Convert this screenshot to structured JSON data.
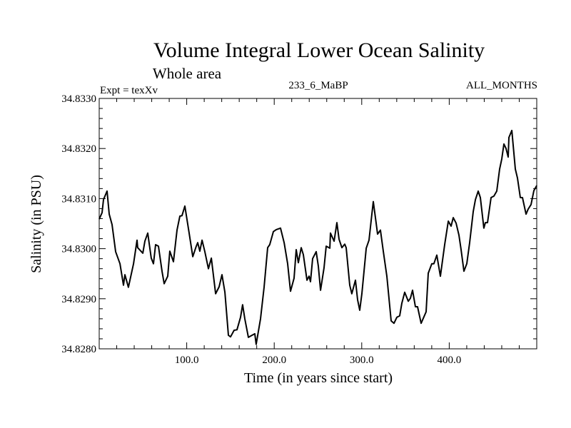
{
  "chart_data": {
    "type": "line",
    "title": "Volume Integral Lower Ocean Salinity",
    "subtitle": "Whole area",
    "header_left": "Expt = texXv",
    "header_center": "233_6_MaBP",
    "header_right": "ALL_MONTHS",
    "xlabel": "Time (in years since start)",
    "ylabel": "Salinity (in PSU)",
    "xlim": [
      0,
      500
    ],
    "ylim": [
      34.828,
      34.833
    ],
    "x_ticks": [
      100,
      200,
      300,
      400
    ],
    "x_tick_labels": [
      "100.0",
      "200.0",
      "300.0",
      "400.0"
    ],
    "x_minor_step": 20,
    "y_ticks": [
      34.828,
      34.829,
      34.83,
      34.831,
      34.832,
      34.833
    ],
    "y_tick_labels": [
      "34.8280",
      "34.8290",
      "34.8300",
      "34.8310",
      "34.8320",
      "34.8330"
    ],
    "y_minor_step": 0.0002,
    "grid": false,
    "line_color": "#000000",
    "series": [
      {
        "name": "Salinity",
        "x": [
          0,
          3.3,
          4.9,
          9.0,
          11.4,
          14.7,
          18.8,
          23.7,
          27.7,
          29.4,
          33.4,
          39.2,
          43.2,
          44.0,
          49.8,
          52.2,
          55.5,
          59.5,
          62.0,
          64.4,
          67.7,
          71.8,
          74.2,
          78.3,
          80.7,
          84.8,
          88.9,
          92.2,
          94.6,
          97.9,
          102.8,
          106.9,
          110.9,
          112.6,
          115.0,
          117.5,
          120.7,
          124.8,
          128.1,
          133.0,
          137.0,
          140.3,
          143.6,
          147.6,
          150.1,
          154.2,
          157.4,
          161.5,
          163.9,
          166.4,
          170.5,
          174.6,
          177.8,
          179.4,
          184.3,
          188.4,
          192.5,
          194.9,
          199.0,
          202.3,
          207.2,
          211.3,
          215.3,
          218.6,
          222.7,
          225.1,
          227.6,
          230.8,
          233.3,
          237.4,
          239.8,
          241.4,
          243.9,
          248.0,
          250.4,
          252.9,
          256.9,
          259.4,
          263.5,
          264.3,
          268.4,
          271.6,
          274.1,
          277.3,
          280.6,
          282.2,
          286.3,
          288.7,
          292.8,
          295.3,
          297.7,
          300.2,
          305.1,
          308.3,
          311.6,
          313.2,
          316.5,
          318.1,
          321.4,
          324.6,
          328.7,
          333.6,
          336.9,
          340.1,
          343.4,
          345.8,
          349.1,
          353.2,
          355.6,
          358.1,
          361.3,
          363.8,
          367.9,
          373.6,
          376.0,
          380.1,
          382.5,
          385.8,
          389.9,
          394.8,
          398.9,
          402.1,
          404.6,
          407.8,
          411.1,
          413.5,
          416.8,
          420.1,
          423.3,
          427.4,
          429.9,
          433.1,
          435.6,
          439.6,
          441.3,
          443.7,
          447.8,
          451.1,
          454.3,
          457.6,
          460.0,
          462.5,
          464.9,
          467.4,
          468.2,
          471.5,
          475.5,
          478.0,
          481.2,
          483.7,
          487.8,
          490.2,
          493.5,
          496.7,
          500.0
        ],
        "y": [
          34.83059,
          34.83072,
          34.83098,
          34.83115,
          34.83069,
          34.83048,
          34.82994,
          34.8297,
          34.82927,
          34.82948,
          34.82923,
          34.8297,
          34.83017,
          34.83002,
          34.82991,
          34.83015,
          34.83031,
          34.82981,
          34.8297,
          34.83008,
          34.83005,
          34.82955,
          34.8293,
          34.82945,
          34.82995,
          34.82974,
          34.83037,
          34.83065,
          34.83066,
          34.83085,
          34.83031,
          34.82984,
          34.83005,
          34.83012,
          34.82995,
          34.83017,
          34.82994,
          34.8296,
          34.82981,
          34.8291,
          34.82924,
          34.82948,
          34.82913,
          34.82827,
          34.82824,
          34.82837,
          34.82838,
          34.82863,
          34.82888,
          34.8286,
          34.82823,
          34.82827,
          34.8283,
          34.82809,
          34.8286,
          34.82923,
          34.83002,
          34.83008,
          34.83034,
          34.83038,
          34.83041,
          34.83012,
          34.8297,
          34.82915,
          34.82941,
          34.82998,
          34.82972,
          34.83002,
          34.82988,
          34.82937,
          34.82945,
          34.82934,
          34.8298,
          34.82994,
          34.82965,
          34.82917,
          34.82962,
          34.83005,
          34.83001,
          34.83031,
          34.83015,
          34.83052,
          34.83019,
          34.83002,
          34.83009,
          34.83002,
          34.82927,
          34.8291,
          34.82937,
          34.82898,
          34.82877,
          34.8291,
          34.83001,
          34.83017,
          34.83069,
          34.83094,
          34.83051,
          34.83029,
          34.83037,
          34.82995,
          34.82945,
          34.82856,
          34.82851,
          34.82863,
          34.82866,
          34.82891,
          34.82913,
          34.82895,
          34.82901,
          34.82917,
          34.82884,
          34.82884,
          34.82851,
          34.82874,
          34.82951,
          34.8297,
          34.8297,
          34.82987,
          34.82945,
          34.83008,
          34.83055,
          34.83045,
          34.83062,
          34.83051,
          34.83027,
          34.82998,
          34.82955,
          34.8297,
          34.83012,
          34.83074,
          34.83098,
          34.83115,
          34.83102,
          34.83041,
          34.83052,
          34.83052,
          34.83102,
          34.83105,
          34.83115,
          34.83159,
          34.83179,
          34.83209,
          34.832,
          34.83183,
          34.83222,
          34.83236,
          34.83159,
          34.83141,
          34.83102,
          34.83102,
          34.83069,
          34.83079,
          34.83088,
          34.83116,
          34.83126
        ]
      }
    ]
  }
}
